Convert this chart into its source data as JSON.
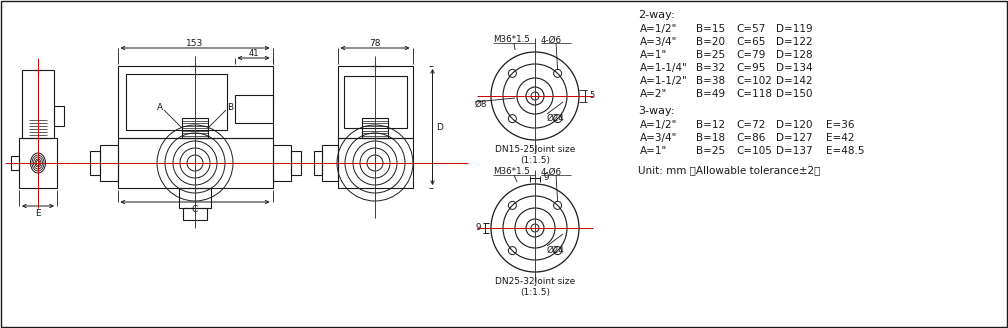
{
  "bg_color": "#ffffff",
  "line_color": "#1a1a1a",
  "red_line_color": "#cc0000",
  "text_color": "#1a1a1a",
  "two_way_title": "2-way:",
  "three_way_title": "3-way:",
  "two_way_rows": [
    [
      "A=1/2\"",
      "B=15",
      "C=57",
      "D=119",
      ""
    ],
    [
      "A=3/4\"",
      "B=20",
      "C=65",
      "D=122",
      ""
    ],
    [
      "A=1\"",
      "B=25",
      "C=79",
      "D=128",
      ""
    ],
    [
      "A=1-1/4\"",
      "B=32",
      "C=95",
      "D=134",
      ""
    ],
    [
      "A=1-1/2\"",
      "B=38",
      "C=102",
      "D=142",
      ""
    ],
    [
      "A=2\"",
      "B=49",
      "C=118",
      "D=150",
      ""
    ]
  ],
  "three_way_rows": [
    [
      "A=1/2\"",
      "B=12",
      "C=72",
      "D=120",
      "E=36"
    ],
    [
      "A=3/4\"",
      "B=18",
      "C=86",
      "D=127",
      "E=42"
    ],
    [
      "A=1\"",
      "B=25",
      "C=105",
      "D=137",
      "E=48.5"
    ]
  ],
  "unit_text": "Unit: mm （Allowable tolerance±2）",
  "dim_153": "153",
  "dim_41": "41",
  "dim_78": "78",
  "dim_D": "D",
  "dim_A": "A",
  "dim_B": "B",
  "dim_C": "C",
  "dim_E": "E",
  "label_M36_15": "M36*1.5",
  "label_4_06": "4-Ø6",
  "label_08": "Ø8",
  "label_024": "Ø24",
  "label_DN15_25": "DN15-25Joint size",
  "label_DN25_32": "DN25-32Joint size",
  "label_scale": "(1:1.5)",
  "label_5": "5",
  "label_9": "9"
}
